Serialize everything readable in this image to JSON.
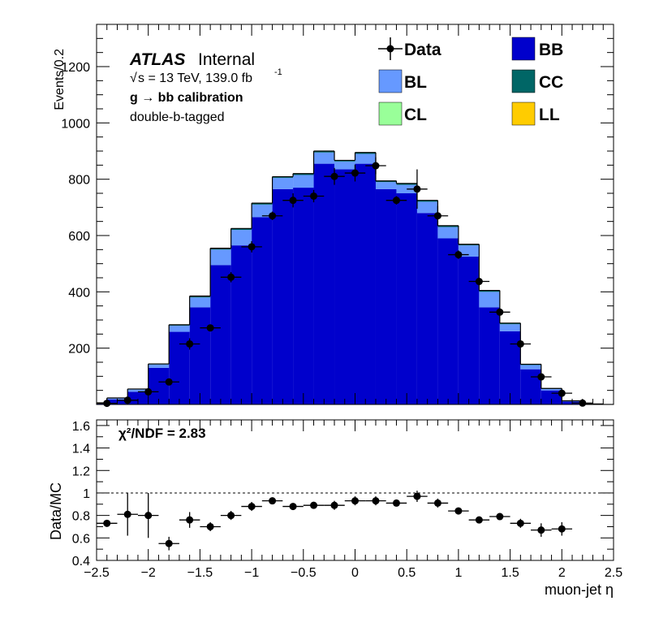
{
  "chart_data": [
    {
      "panel": "main",
      "type": "stacked-histogram",
      "ylabel": "Events/0.2",
      "ylim": [
        0,
        1350
      ],
      "xlim": [
        -2.5,
        2.5
      ],
      "yticks": [
        200,
        400,
        600,
        800,
        1000,
        1200
      ],
      "atlas_label": "ATLAS",
      "atlas_status": "Internal",
      "energy_text": "s = 13 TeV, 139.0 fb",
      "energy_sqrt_symbol": "√",
      "energy_superscript": "-1",
      "process_text": "g  → bb calibration",
      "tag_text": "double-b-tagged",
      "legend": [
        {
          "label": "Data",
          "kind": "data",
          "color": "#000000"
        },
        {
          "label": "BB",
          "kind": "fill",
          "color": "#0000cc"
        },
        {
          "label": "BL",
          "kind": "fill",
          "color": "#6699ff"
        },
        {
          "label": "CC",
          "kind": "fill",
          "color": "#006666"
        },
        {
          "label": "CL",
          "kind": "fill",
          "color": "#99ff99"
        },
        {
          "label": "LL",
          "kind": "fill",
          "color": "#ffcc00"
        }
      ],
      "bin_edges": [
        -2.6,
        -2.4,
        -2.2,
        -2.0,
        -1.8,
        -1.6,
        -1.4,
        -1.2,
        -1.0,
        -0.8,
        -0.6,
        -0.4,
        -0.2,
        0.0,
        0.2,
        0.4,
        0.6,
        0.8,
        1.0,
        1.2,
        1.4,
        1.6,
        1.8,
        2.0,
        2.2,
        2.4,
        2.6
      ],
      "series": [
        {
          "name": "BB",
          "color": "#0000cc",
          "values": [
            5,
            18,
            45,
            130,
            258,
            345,
            495,
            565,
            665,
            765,
            770,
            855,
            835,
            855,
            765,
            750,
            680,
            590,
            525,
            345,
            260,
            125,
            50,
            10,
            2
          ]
        },
        {
          "name": "BL",
          "color": "#6699ff",
          "values": [
            1,
            4,
            8,
            12,
            22,
            35,
            55,
            55,
            45,
            40,
            45,
            40,
            28,
            35,
            25,
            30,
            40,
            40,
            40,
            55,
            25,
            15,
            5,
            2,
            0
          ]
        },
        {
          "name": "CC",
          "color": "#006666",
          "values": [
            0,
            1,
            2,
            2,
            3,
            5,
            5,
            5,
            5,
            4,
            5,
            5,
            4,
            5,
            4,
            5,
            5,
            5,
            4,
            5,
            4,
            3,
            2,
            1,
            0
          ]
        },
        {
          "name": "CL",
          "color": "#99ff99",
          "values": [
            0,
            0,
            0,
            0,
            0,
            0,
            0,
            0,
            0,
            0,
            0,
            0,
            0,
            0,
            0,
            0,
            0,
            0,
            0,
            0,
            0,
            0,
            0,
            0,
            0
          ]
        },
        {
          "name": "LL",
          "color": "#ffcc00",
          "values": [
            0,
            0,
            0,
            0,
            0,
            0,
            0,
            0,
            0,
            0,
            0,
            0,
            0,
            0,
            0,
            0,
            0,
            0,
            0,
            0,
            0,
            0,
            0,
            0,
            0
          ]
        }
      ],
      "data_points": [
        {
          "x": -2.4,
          "y": 4,
          "err": 2
        },
        {
          "x": -2.2,
          "y": 15,
          "err": 4
        },
        {
          "x": -2.0,
          "y": 45,
          "err": 7
        },
        {
          "x": -1.8,
          "y": 80,
          "err": 9
        },
        {
          "x": -1.6,
          "y": 215,
          "err": 20
        },
        {
          "x": -1.4,
          "y": 272,
          "err": 12
        },
        {
          "x": -1.2,
          "y": 452,
          "err": 18
        },
        {
          "x": -1.0,
          "y": 560,
          "err": 20
        },
        {
          "x": -0.8,
          "y": 670,
          "err": 15
        },
        {
          "x": -0.6,
          "y": 725,
          "err": 25
        },
        {
          "x": -0.4,
          "y": 740,
          "err": 22
        },
        {
          "x": -0.2,
          "y": 810,
          "err": 30
        },
        {
          "x": 0.0,
          "y": 822,
          "err": 30
        },
        {
          "x": 0.2,
          "y": 848,
          "err": 30
        },
        {
          "x": 0.4,
          "y": 725,
          "err": 15
        },
        {
          "x": 0.6,
          "y": 765,
          "err": 70
        },
        {
          "x": 0.8,
          "y": 670,
          "err": 35
        },
        {
          "x": 1.0,
          "y": 532,
          "err": 15
        },
        {
          "x": 1.2,
          "y": 437,
          "err": 15
        },
        {
          "x": 1.4,
          "y": 328,
          "err": 15
        },
        {
          "x": 1.6,
          "y": 215,
          "err": 12
        },
        {
          "x": 1.8,
          "y": 98,
          "err": 8
        },
        {
          "x": 2.0,
          "y": 40,
          "err": 6
        },
        {
          "x": 2.2,
          "y": 5,
          "err": 2
        }
      ]
    },
    {
      "panel": "ratio",
      "type": "scatter",
      "ylabel": "Data/MC",
      "xlabel": "muon-jet η",
      "ylim": [
        0.4,
        1.65
      ],
      "xlim": [
        -2.5,
        2.5
      ],
      "yticks": [
        0.4,
        0.6,
        0.8,
        1,
        1.2,
        1.4,
        1.6
      ],
      "ytick_labels": [
        "0.4",
        "0.6",
        "0.8",
        "1",
        "1.2",
        "1.4",
        "1.6"
      ],
      "xticks": [
        -2.5,
        -2,
        -1.5,
        -1,
        -0.5,
        0,
        0.5,
        1,
        1.5,
        2,
        2.5
      ],
      "xtick_labels": [
        "−2.5",
        "−2",
        "−1.5",
        "−1",
        "−0.5",
        "0",
        "0.5",
        "1",
        "1.5",
        "2",
        "2.5"
      ],
      "reference_line": 1,
      "annotation": "χ²/NDF = 2.83",
      "points": [
        {
          "x": -2.4,
          "y": 0.73,
          "err": 0.0
        },
        {
          "x": -2.2,
          "y": 0.81,
          "err": 0.19
        },
        {
          "x": -2.0,
          "y": 0.8,
          "err": 0.2
        },
        {
          "x": -1.8,
          "y": 0.55,
          "err": 0.06
        },
        {
          "x": -1.6,
          "y": 0.76,
          "err": 0.07
        },
        {
          "x": -1.4,
          "y": 0.7,
          "err": 0.04
        },
        {
          "x": -1.2,
          "y": 0.8,
          "err": 0.04
        },
        {
          "x": -1.0,
          "y": 0.88,
          "err": 0.04
        },
        {
          "x": -0.8,
          "y": 0.93,
          "err": 0.03
        },
        {
          "x": -0.6,
          "y": 0.88,
          "err": 0.03
        },
        {
          "x": -0.4,
          "y": 0.89,
          "err": 0.03
        },
        {
          "x": -0.2,
          "y": 0.89,
          "err": 0.04
        },
        {
          "x": 0.0,
          "y": 0.93,
          "err": 0.04
        },
        {
          "x": 0.2,
          "y": 0.93,
          "err": 0.04
        },
        {
          "x": 0.4,
          "y": 0.91,
          "err": 0.02
        },
        {
          "x": 0.6,
          "y": 0.97,
          "err": 0.05
        },
        {
          "x": 0.8,
          "y": 0.91,
          "err": 0.04
        },
        {
          "x": 1.0,
          "y": 0.84,
          "err": 0.03
        },
        {
          "x": 1.2,
          "y": 0.76,
          "err": 0.03
        },
        {
          "x": 1.4,
          "y": 0.79,
          "err": 0.03
        },
        {
          "x": 1.6,
          "y": 0.73,
          "err": 0.04
        },
        {
          "x": 1.8,
          "y": 0.67,
          "err": 0.06
        },
        {
          "x": 2.0,
          "y": 0.68,
          "err": 0.06
        }
      ]
    }
  ]
}
